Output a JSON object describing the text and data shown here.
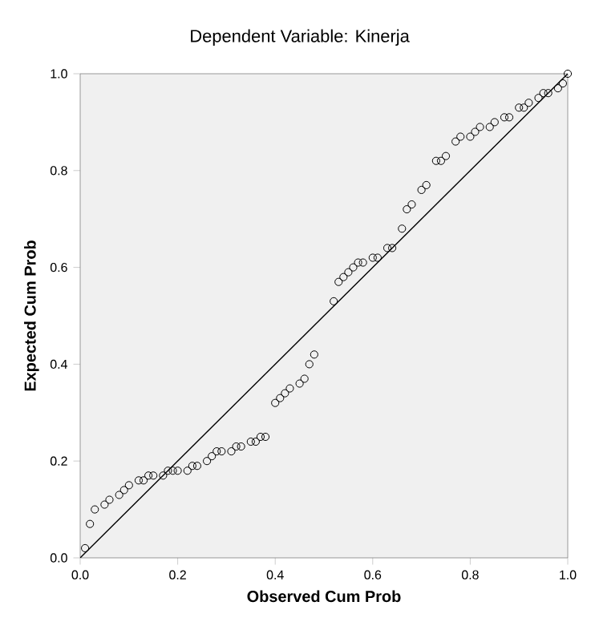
{
  "chart_data": {
    "type": "scatter",
    "title": "Dependent Variable: Kinerja",
    "xlabel": "Observed Cum Prob",
    "ylabel": "Expected Cum Prob",
    "xlim": [
      0,
      1
    ],
    "ylim": [
      0,
      1
    ],
    "xticks": [
      {
        "value": 0,
        "label": "0.0"
      },
      {
        "value": 0.2,
        "label": "0.2"
      },
      {
        "value": 0.4,
        "label": "0.4"
      },
      {
        "value": 0.6,
        "label": "0.6"
      },
      {
        "value": 0.8,
        "label": "0.8"
      },
      {
        "value": 1,
        "label": "1.0"
      }
    ],
    "yticks": [
      {
        "value": 0,
        "label": "0.0"
      },
      {
        "value": 0.2,
        "label": "0.2"
      },
      {
        "value": 0.4,
        "label": "0.4"
      },
      {
        "value": 0.6,
        "label": "0.6"
      },
      {
        "value": 0.8,
        "label": "0.8"
      },
      {
        "value": 1,
        "label": "1.0"
      }
    ],
    "series": [
      {
        "marker": "circle",
        "color": "#000000",
        "x": [
          0.01,
          0.02,
          0.03,
          0.05,
          0.06,
          0.08,
          0.09,
          0.1,
          0.12,
          0.13,
          0.14,
          0.15,
          0.17,
          0.18,
          0.19,
          0.2,
          0.22,
          0.23,
          0.24,
          0.26,
          0.27,
          0.28,
          0.29,
          0.31,
          0.32,
          0.33,
          0.35,
          0.36,
          0.37,
          0.38,
          0.4,
          0.41,
          0.42,
          0.43,
          0.45,
          0.46,
          0.47,
          0.48,
          0.52,
          0.53,
          0.54,
          0.55,
          0.56,
          0.57,
          0.58,
          0.6,
          0.61,
          0.63,
          0.64,
          0.66,
          0.67,
          0.68,
          0.7,
          0.71,
          0.73,
          0.74,
          0.75,
          0.77,
          0.78,
          0.8,
          0.81,
          0.82,
          0.84,
          0.85,
          0.87,
          0.88,
          0.9,
          0.91,
          0.92,
          0.94,
          0.95,
          0.96,
          0.98,
          0.99,
          1.0
        ],
        "values": [
          0.02,
          0.07,
          0.1,
          0.11,
          0.12,
          0.13,
          0.14,
          0.15,
          0.16,
          0.16,
          0.17,
          0.17,
          0.17,
          0.18,
          0.18,
          0.18,
          0.18,
          0.19,
          0.19,
          0.2,
          0.21,
          0.22,
          0.22,
          0.22,
          0.23,
          0.23,
          0.24,
          0.24,
          0.25,
          0.25,
          0.32,
          0.33,
          0.34,
          0.35,
          0.36,
          0.37,
          0.4,
          0.42,
          0.53,
          0.57,
          0.58,
          0.59,
          0.6,
          0.61,
          0.61,
          0.62,
          0.62,
          0.64,
          0.64,
          0.68,
          0.72,
          0.73,
          0.76,
          0.77,
          0.82,
          0.82,
          0.83,
          0.86,
          0.87,
          0.87,
          0.88,
          0.89,
          0.89,
          0.9,
          0.91,
          0.91,
          0.93,
          0.93,
          0.94,
          0.95,
          0.96,
          0.96,
          0.97,
          0.98,
          1.0
        ]
      },
      {
        "type": "line",
        "marker": "none",
        "color": "#000000",
        "x": [
          0,
          1
        ],
        "values": [
          0,
          1
        ]
      }
    ]
  }
}
